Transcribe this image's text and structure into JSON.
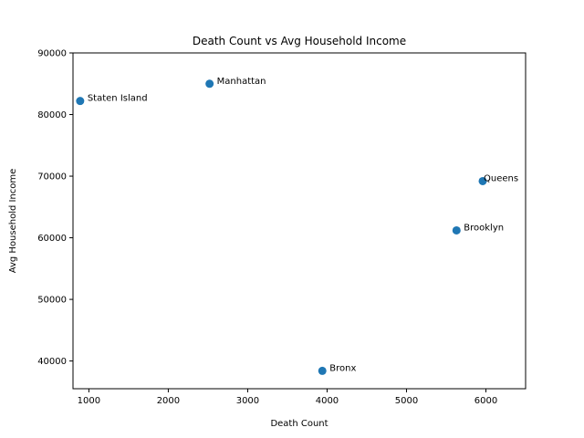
{
  "chart_data": {
    "type": "scatter",
    "title": "Death Count vs Avg Household Income",
    "xlabel": "Death Count",
    "ylabel": "Avg Household Income",
    "xlim": [
      800,
      6500
    ],
    "ylim": [
      35500,
      90000
    ],
    "xticks": [
      1000,
      2000,
      3000,
      4000,
      5000,
      6000
    ],
    "yticks": [
      40000,
      50000,
      60000,
      70000,
      80000,
      90000
    ],
    "xtick_labels": [
      "1000",
      "2000",
      "3000",
      "4000",
      "5000",
      "6000"
    ],
    "ytick_labels": [
      "40000",
      "50000",
      "60000",
      "70000",
      "80000",
      "90000"
    ],
    "grid": false,
    "marker_color": "#1f77b4",
    "points": [
      {
        "label": "Staten Island",
        "x": 890,
        "y": 82200
      },
      {
        "label": "Manhattan",
        "x": 2520,
        "y": 85000
      },
      {
        "label": "Queens",
        "x": 5960,
        "y": 69200
      },
      {
        "label": "Brooklyn",
        "x": 5630,
        "y": 61200
      },
      {
        "label": "Bronx",
        "x": 3940,
        "y": 38400
      }
    ]
  }
}
